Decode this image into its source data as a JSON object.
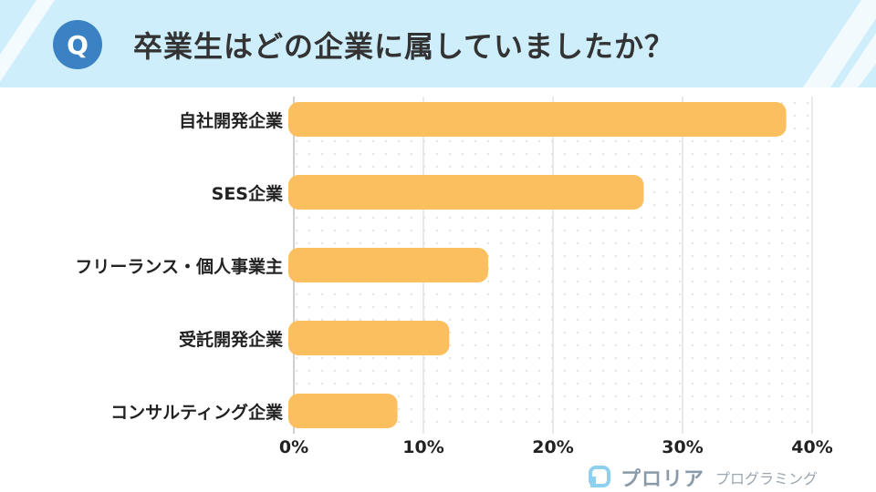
{
  "header": {
    "badge": "Q",
    "title": "卒業生はどの企業に属していましたか？"
  },
  "chart_data": {
    "type": "bar",
    "orientation": "horizontal",
    "categories": [
      "自社開発企業",
      "SES企業",
      "フリーランス・個人事業主",
      "受託開発企業",
      "コンサルティング企業"
    ],
    "values": [
      38,
      27,
      15,
      12,
      8
    ],
    "xlim": [
      0,
      40
    ],
    "ticks": [
      "0%",
      "10%",
      "20%",
      "30%",
      "40%"
    ],
    "bar_color": "#fbbf5f",
    "grid": true
  },
  "logo": {
    "mark": "P",
    "name": "プロリア",
    "sub": "プログラミング"
  }
}
